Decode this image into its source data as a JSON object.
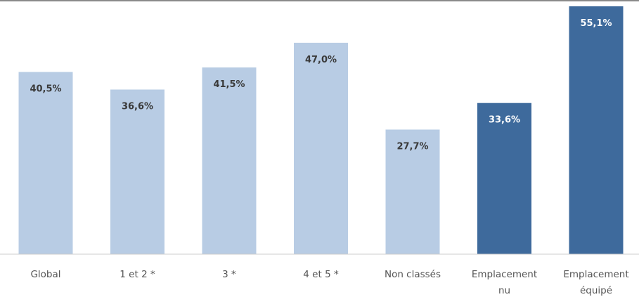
{
  "chart_data": {
    "type": "bar",
    "title": "",
    "xlabel": "",
    "ylabel": "",
    "ylim": [
      0,
      56.5
    ],
    "grid": false,
    "legend": "none",
    "categories": [
      [
        "Global"
      ],
      [
        "1 et 2 *"
      ],
      [
        "3 *"
      ],
      [
        "4 et 5 *"
      ],
      [
        "Non classés"
      ],
      [
        "Emplacement",
        "nu"
      ],
      [
        "Emplacement",
        "équipé"
      ]
    ],
    "values": [
      40.5,
      36.6,
      41.5,
      47.0,
      27.7,
      33.6,
      55.1
    ],
    "value_labels": [
      "40,5%",
      "36,6%",
      "41,5%",
      "47,0%",
      "27,7%",
      "33,6%",
      "55,1%"
    ],
    "groups": [
      "light",
      "light",
      "light",
      "light",
      "light",
      "dark",
      "dark"
    ]
  },
  "colors": {
    "light_bar": "#b8cce4",
    "dark_bar": "#3e6a9c",
    "light_label": "#3a3a3a",
    "dark_label": "#ffffff",
    "baseline": "#cccccc",
    "top_rule": "#8a8a8a"
  }
}
